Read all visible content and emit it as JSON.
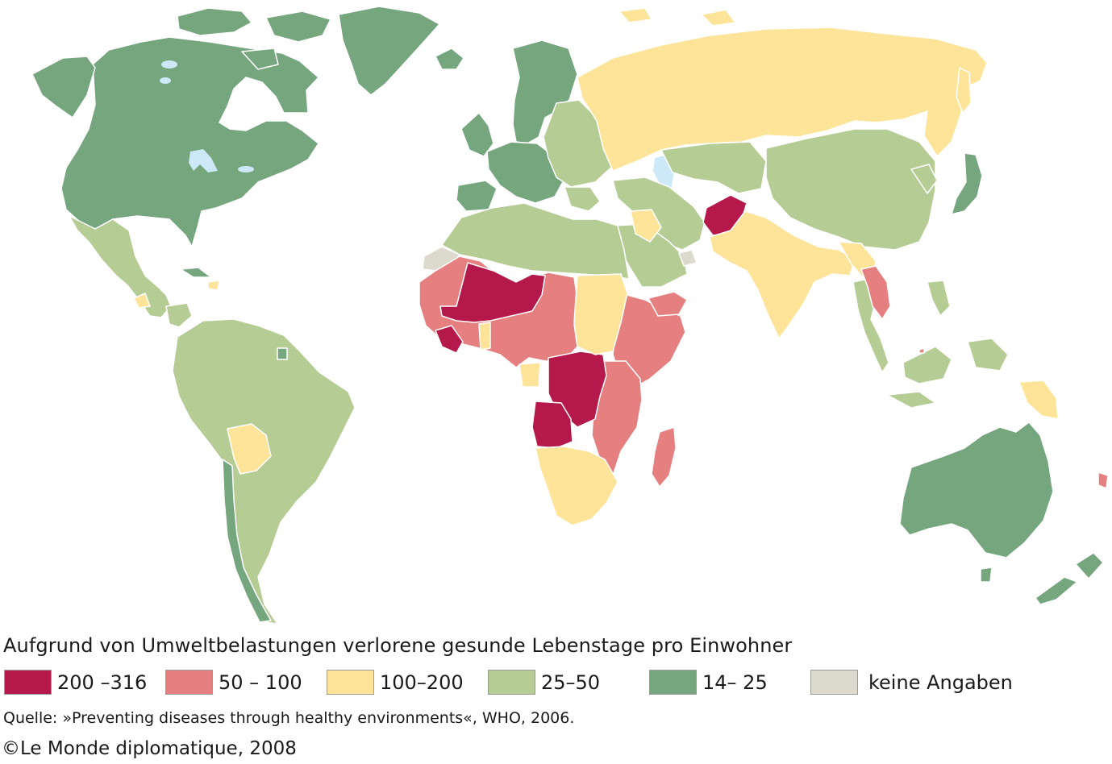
{
  "legend": {
    "title": "Aufgrund von Umweltbelastungen verlorene gesunde Lebenstage pro Einwohner",
    "items": [
      {
        "label": "200 –316",
        "color": "#b5194b"
      },
      {
        "label": "50 – 100",
        "color": "#e68080"
      },
      {
        "label": "100–200",
        "color": "#fde498"
      },
      {
        "label": "25–50",
        "color": "#b5cc95"
      },
      {
        "label": "14– 25",
        "color": "#76a67e"
      },
      {
        "label": "keine Angaben",
        "color": "#dcd9cd"
      }
    ]
  },
  "source": "Quelle: »Preventing diseases through healthy environments«, WHO, 2006.",
  "copyright": "©Le Monde diplomatique, 2008",
  "map": {
    "ocean_color": "#ffffff",
    "lake_color": "#cde8f6",
    "border_color": "#ffffff"
  }
}
